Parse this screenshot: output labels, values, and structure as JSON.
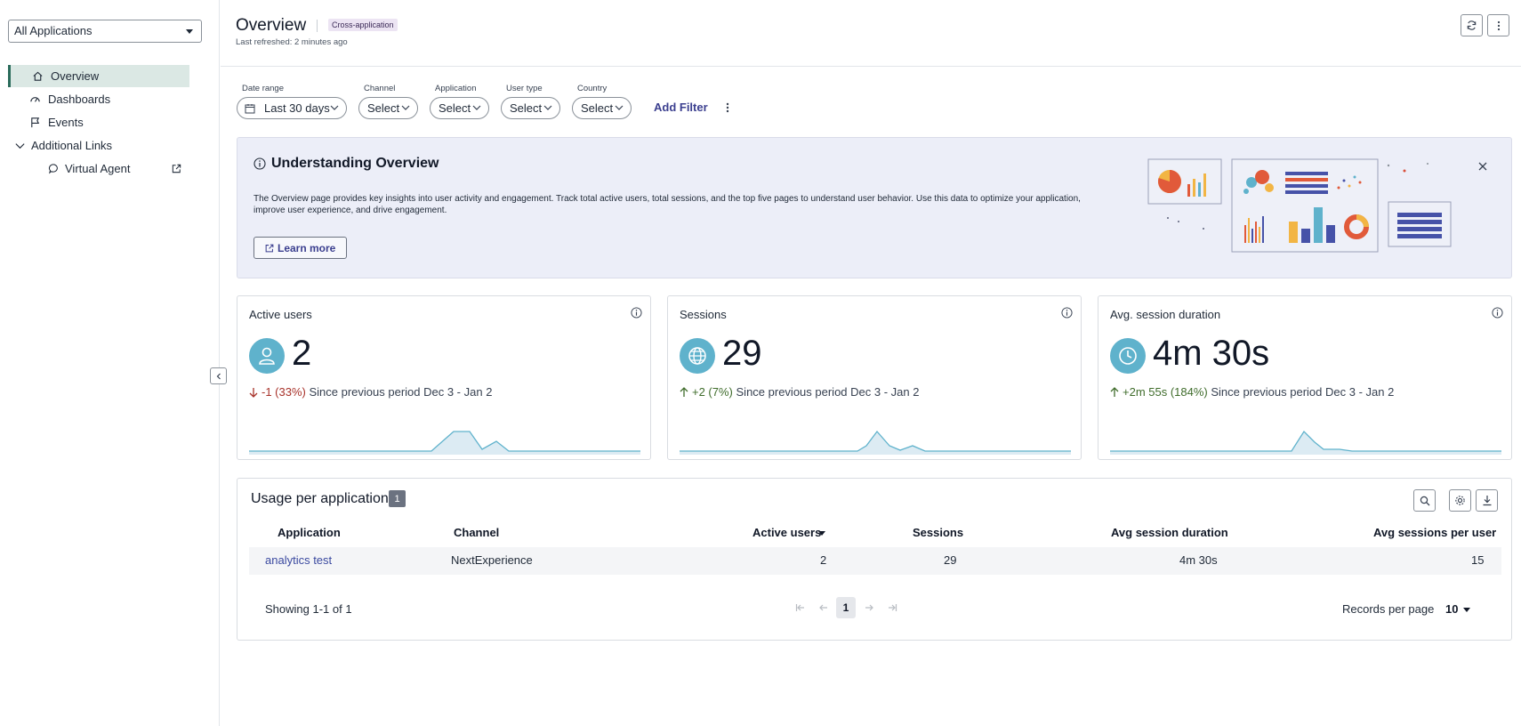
{
  "sidebar": {
    "app_select": "All Applications",
    "items": [
      {
        "label": "Overview",
        "icon": "home-icon",
        "active": true
      },
      {
        "label": "Dashboards",
        "icon": "gauge-icon"
      },
      {
        "label": "Events",
        "icon": "flag-icon"
      },
      {
        "label": "Additional Links",
        "icon": "chevron-down-icon"
      },
      {
        "label": "Virtual Agent",
        "icon": "chat-icon"
      }
    ]
  },
  "header": {
    "title": "Overview",
    "badge": "Cross-application",
    "refreshed": "Last refreshed: 2 minutes ago"
  },
  "filters": {
    "date_range": {
      "label": "Date range",
      "value": "Last 30 days"
    },
    "channel": {
      "label": "Channel",
      "value": "Select"
    },
    "application": {
      "label": "Application",
      "value": "Select"
    },
    "user_type": {
      "label": "User type",
      "value": "Select"
    },
    "country": {
      "label": "Country",
      "value": "Select"
    },
    "add_filter": "Add Filter"
  },
  "banner": {
    "title": "Understanding Overview",
    "text": "The Overview page provides key insights into user activity and engagement. Track total active users, total sessions, and the top five pages to understand user behavior. Use this data to optimize your application, improve user experience, and drive engagement.",
    "learn_more": "Learn more"
  },
  "cards": [
    {
      "title": "Active users",
      "value": "2",
      "delta": "-1 (33%)",
      "since": "Since previous period Dec 3 - Jan 2",
      "direction": "down"
    },
    {
      "title": "Sessions",
      "value": "29",
      "delta": "+2 (7%)",
      "since": "Since previous period Dec 3 - Jan 2",
      "direction": "up"
    },
    {
      "title": "Avg. session duration",
      "value": "4m 30s",
      "delta": "+2m 55s (184%)",
      "since": "Since previous period Dec 3 - Jan 2",
      "direction": "up"
    }
  ],
  "table": {
    "title": "Usage per application",
    "count": "1",
    "columns": [
      "Application",
      "Channel",
      "Active users",
      "Sessions",
      "Avg session duration",
      "Avg sessions per user"
    ],
    "rows": [
      {
        "application": "analytics test",
        "channel": "NextExperience",
        "active_users": "2",
        "sessions": "29",
        "avg_session_duration": "4m 30s",
        "avg_sessions_per_user": "15"
      }
    ],
    "showing": "Showing 1-1 of 1",
    "page": "1",
    "records_per_page_label": "Records per page",
    "records_per_page": "10"
  },
  "colors": {
    "accent": "#3b3f8f",
    "avatar": "#5fb2cc",
    "negative": "#a8322a",
    "positive": "#3f6c2b",
    "banner_bg": "#eceef8"
  }
}
